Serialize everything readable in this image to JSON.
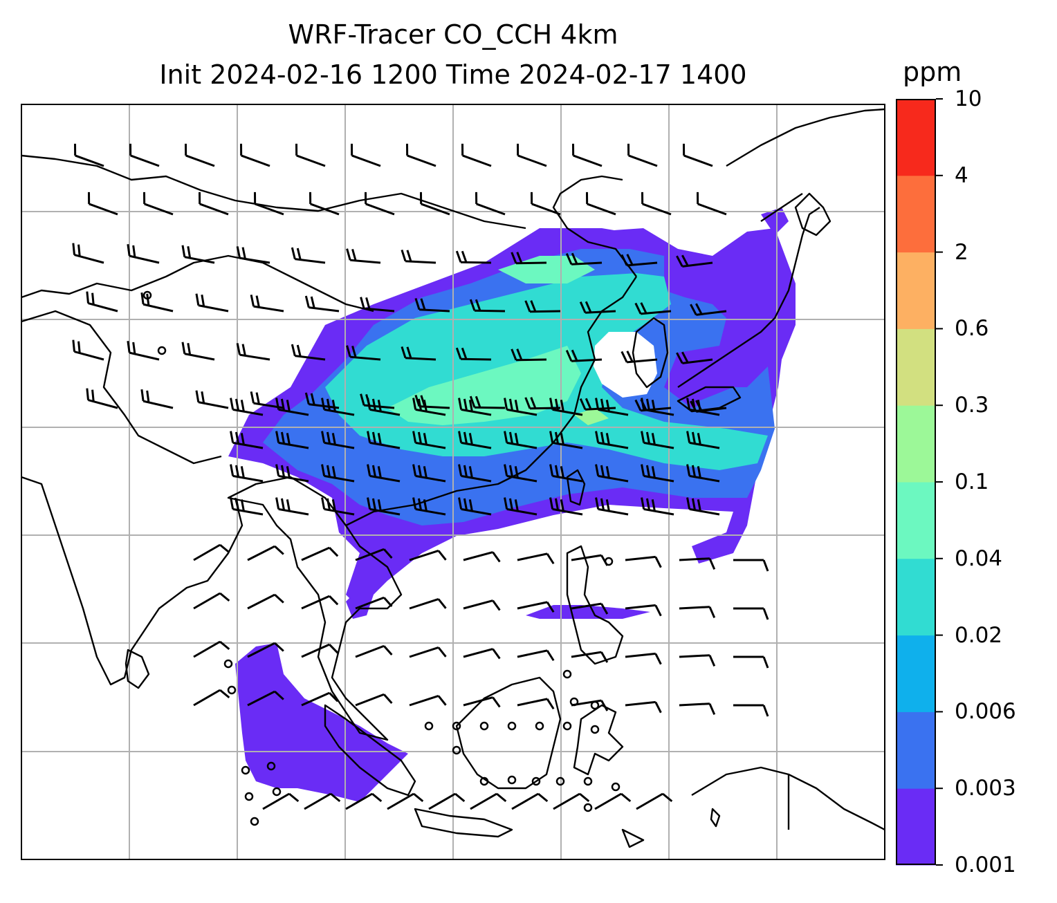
{
  "title": {
    "line1": "WRF-Tracer CO_CCH 4km",
    "line2": "Init 2024-02-16 1200 Time 2024-02-17 1400"
  },
  "colorbar": {
    "units": "ppm",
    "levels": [
      "0.001",
      "0.003",
      "0.006",
      "0.02",
      "0.04",
      "0.1",
      "0.3",
      "0.6",
      "2",
      "4",
      "10"
    ],
    "colors": [
      "#6a2cf5",
      "#3a72f0",
      "#0fb0ec",
      "#31dcd2",
      "#6cf8c0",
      "#9cf898",
      "#d2e080",
      "#fdb062",
      "#fd6e3c",
      "#f7291c"
    ]
  },
  "map": {
    "gridlines": "on",
    "coastlines": "on",
    "plume_color_low": "#6a2cf5",
    "plume_color_mid": "#3a72f0",
    "plume_color_high": "#31dcd2"
  }
}
